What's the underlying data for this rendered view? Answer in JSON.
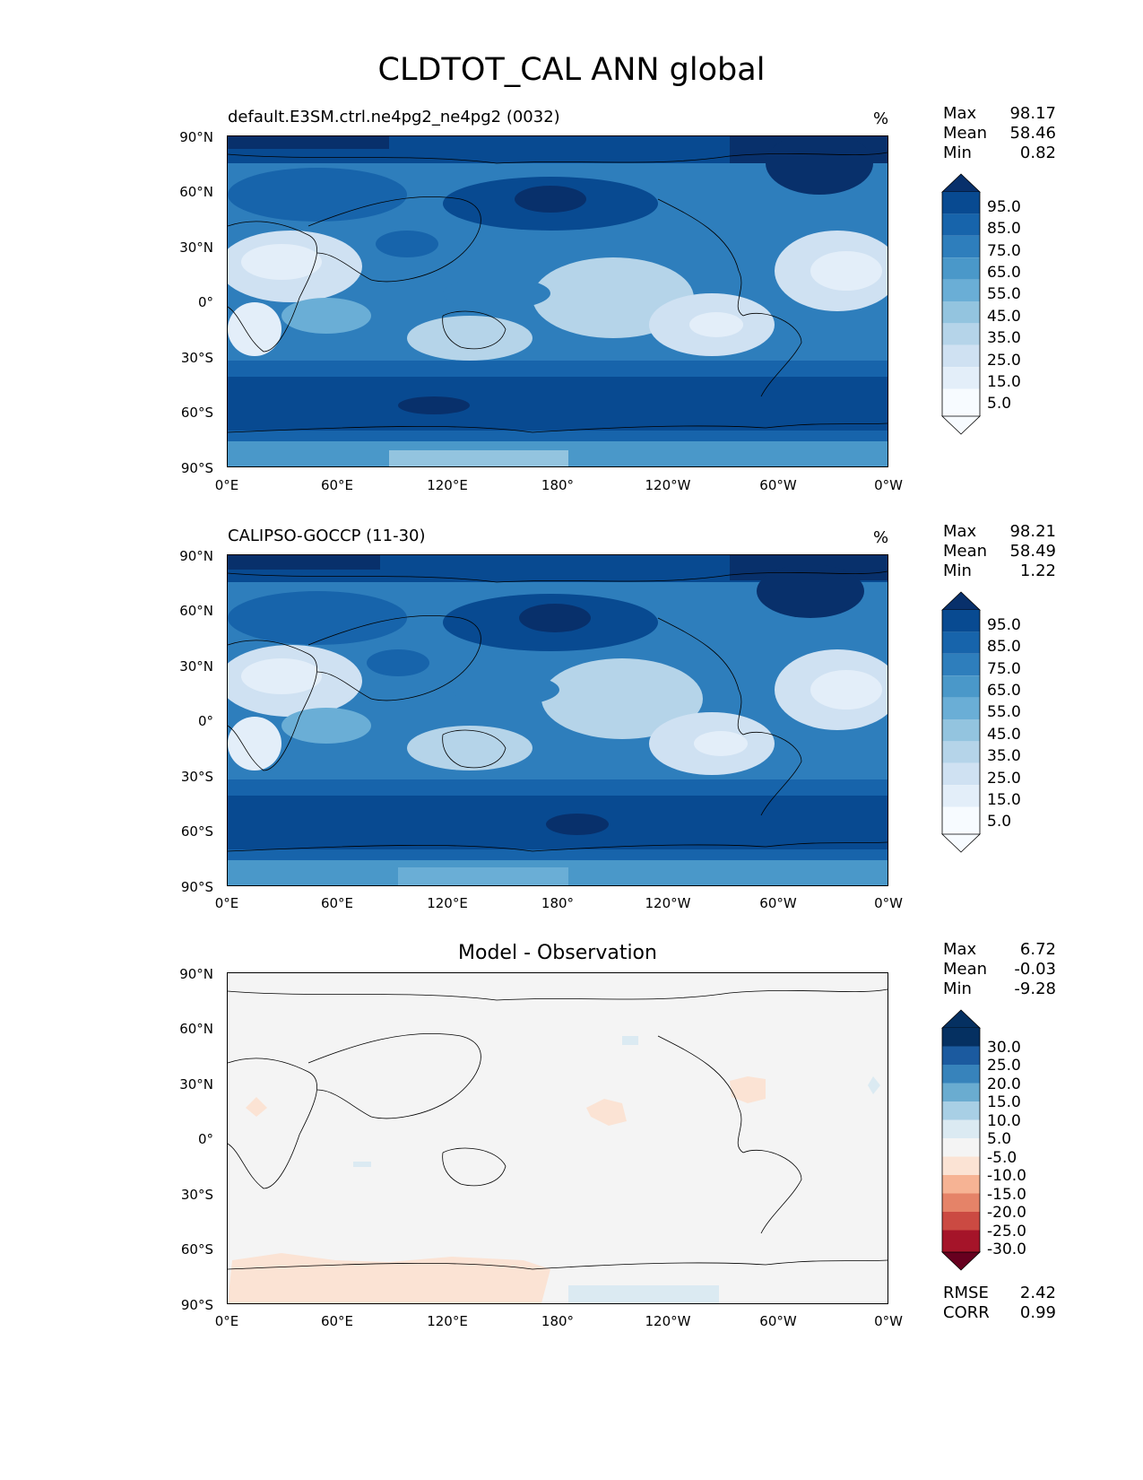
{
  "figure": {
    "title": "CLDTOT_CAL ANN global",
    "x_ticks": [
      "0°E",
      "60°E",
      "120°E",
      "180°",
      "120°W",
      "60°W",
      "0°W"
    ],
    "y_ticks": [
      "90°N",
      "60°N",
      "30°N",
      "0°",
      "30°S",
      "60°S",
      "90°S"
    ]
  },
  "panels": [
    {
      "id": "model",
      "title": "default.E3SM.ctrl.ne4pg2_ne4pg2 (0032)",
      "units": "%",
      "stats": [
        {
          "label": "Max",
          "value": "98.17"
        },
        {
          "label": "Mean",
          "value": "58.46"
        },
        {
          "label": "Min",
          "value": "0.82"
        }
      ],
      "colorbar_labels": [
        "95.0",
        "85.0",
        "75.0",
        "65.0",
        "55.0",
        "45.0",
        "35.0",
        "25.0",
        "15.0",
        "5.0"
      ]
    },
    {
      "id": "obs",
      "title": "CALIPSO-GOCCP (11-30)",
      "units": "%",
      "stats": [
        {
          "label": "Max",
          "value": "98.21"
        },
        {
          "label": "Mean",
          "value": "58.49"
        },
        {
          "label": "Min",
          "value": "1.22"
        }
      ],
      "colorbar_labels": [
        "95.0",
        "85.0",
        "75.0",
        "65.0",
        "55.0",
        "45.0",
        "35.0",
        "25.0",
        "15.0",
        "5.0"
      ]
    },
    {
      "id": "diff",
      "title": "Model - Observation",
      "units": "",
      "stats": [
        {
          "label": "Max",
          "value": "6.72"
        },
        {
          "label": "Mean",
          "value": "-0.03"
        },
        {
          "label": "Min",
          "value": "-9.28"
        }
      ],
      "colorbar_labels": [
        "30.0",
        "25.0",
        "20.0",
        "15.0",
        "10.0",
        "5.0",
        "-5.0",
        "-10.0",
        "-15.0",
        "-20.0",
        "-25.0",
        "-30.0"
      ],
      "metrics": [
        {
          "label": "RMSE",
          "value": "2.42"
        },
        {
          "label": "CORR",
          "value": "0.99"
        }
      ]
    }
  ],
  "colors": {
    "blues": [
      "#f7fbff",
      "#e3eef9",
      "#cfe1f2",
      "#b5d4e9",
      "#93c4df",
      "#6aaed6",
      "#4a98c9",
      "#2e7ebc",
      "#1764ab",
      "#084a91",
      "#08306b"
    ],
    "diverging": [
      "#67001f",
      "#a51429",
      "#cb4a42",
      "#e58368",
      "#f6b394",
      "#fbe3d4",
      "#f4f4f4",
      "#dbeaf2",
      "#a8cfe5",
      "#6aacd0",
      "#3783bb",
      "#1b5a9f",
      "#053061"
    ]
  }
}
